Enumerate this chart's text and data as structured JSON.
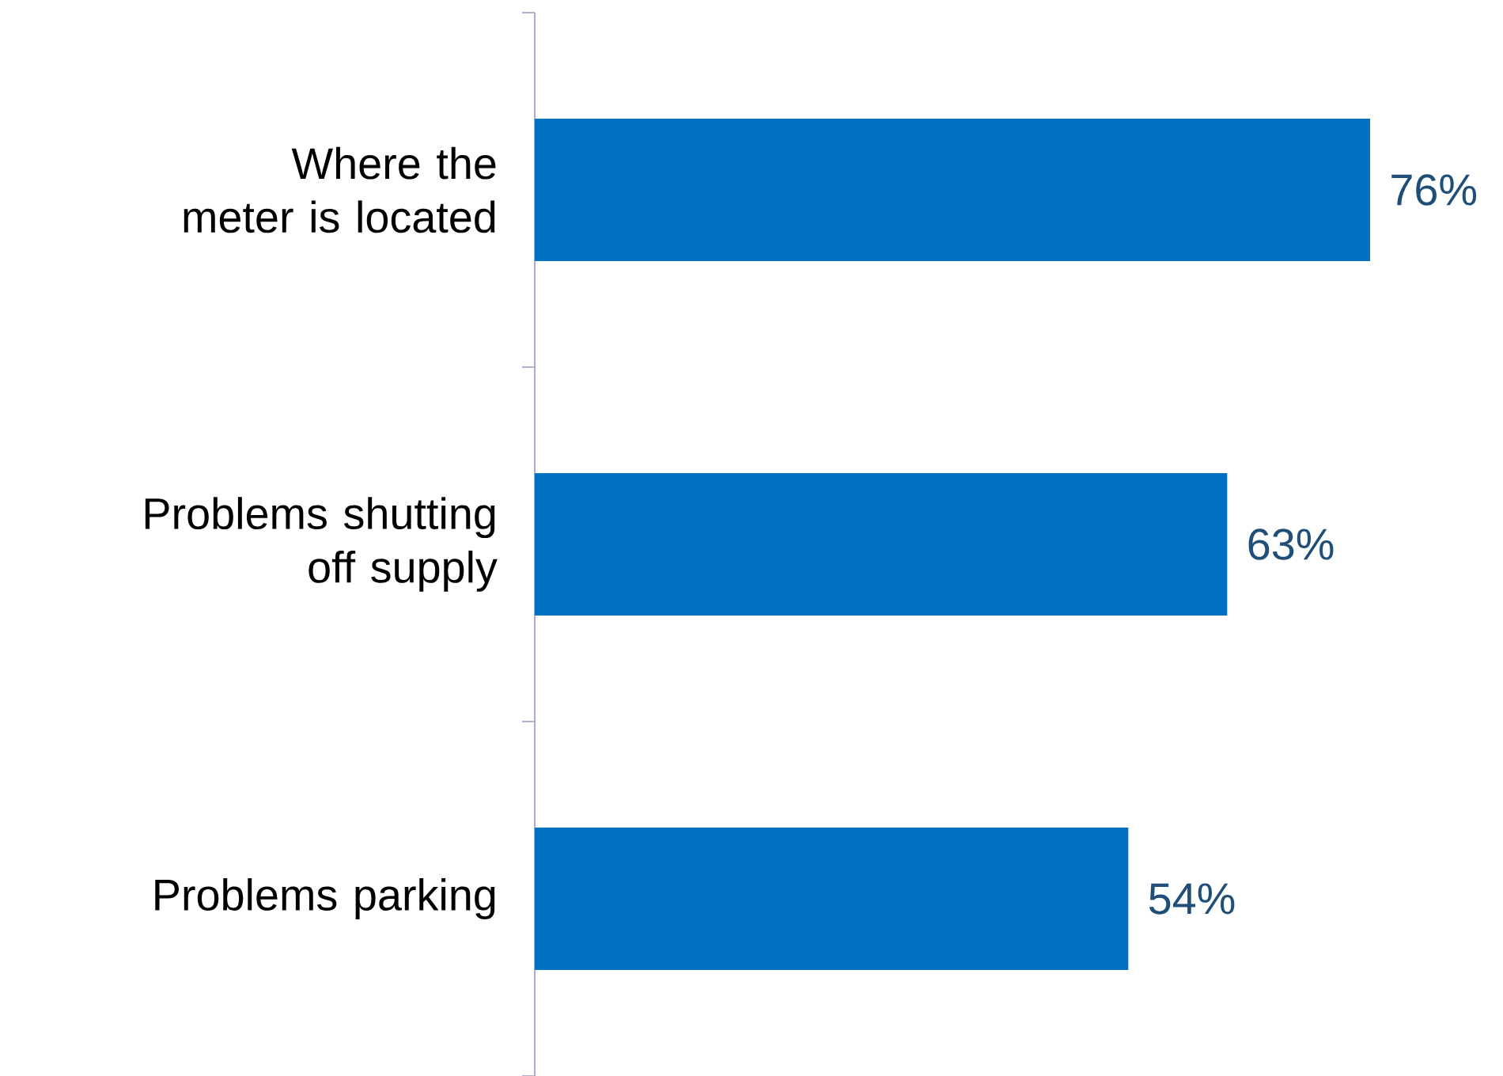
{
  "chart_data": {
    "type": "bar",
    "orientation": "horizontal",
    "categories": [
      "Where the meter is located",
      "Problems shutting off supply",
      "Problems parking"
    ],
    "values": [
      76,
      63,
      54
    ],
    "color": "#0070c0",
    "value_labels": [
      "76%",
      "63%",
      "54%"
    ]
  }
}
